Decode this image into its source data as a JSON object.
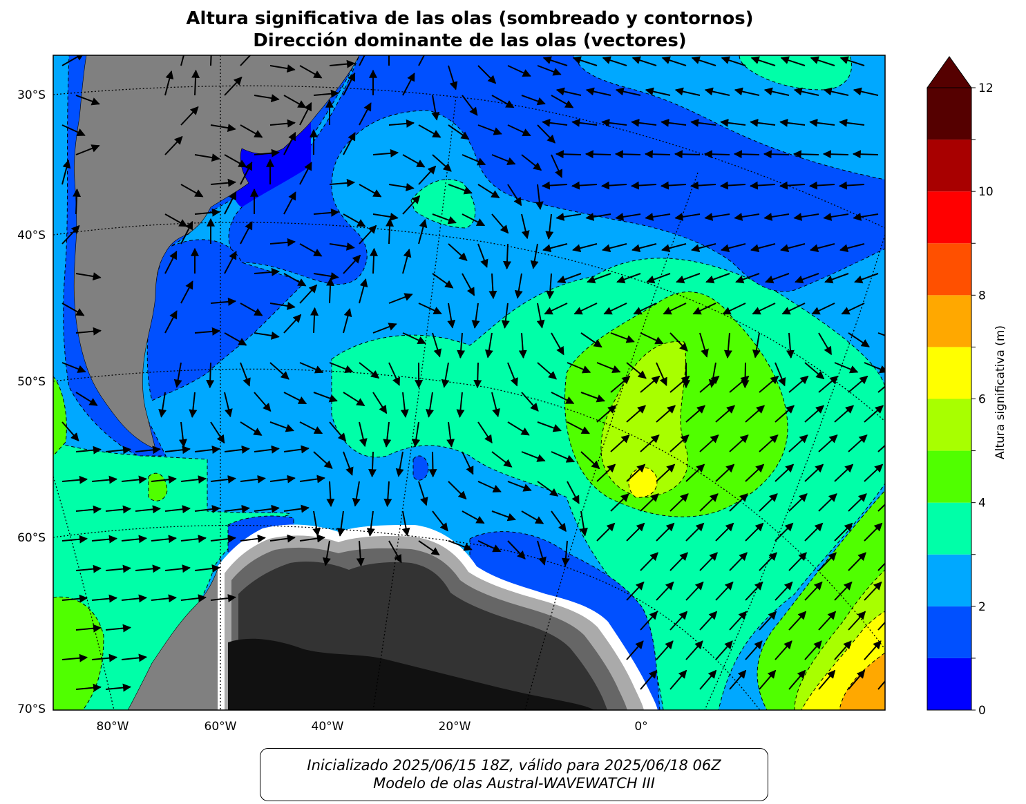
{
  "title": {
    "line1": "Altura significativa de las olas (sombreado y contornos)",
    "line2": "Dirección dominante de las olas (vectores)"
  },
  "footer": {
    "line1": "Inicializado 2025/06/15 18Z, válido para 2025/06/18 06Z",
    "line2": "Modelo de olas Austral-WAVEWATCH III"
  },
  "axes": {
    "lat_labels": [
      "30°S",
      "40°S",
      "50°S",
      "60°S",
      "70°S"
    ],
    "lon_labels": [
      "80°W",
      "60°W",
      "40°W",
      "20°W",
      "0°"
    ]
  },
  "colorbar": {
    "label": "Altura significativa (m)",
    "tick_labels": [
      "0",
      "2",
      "4",
      "6",
      "8",
      "10",
      "12"
    ],
    "levels": [
      0,
      1,
      2,
      3,
      4,
      5,
      6,
      7,
      8,
      9,
      10,
      11,
      12
    ],
    "colors": [
      "#0000ff",
      "#0050ff",
      "#00a8ff",
      "#00ffa8",
      "#50ff00",
      "#a8ff00",
      "#ffff00",
      "#ffa800",
      "#ff5000",
      "#ff0000",
      "#a80000",
      "#550000"
    ],
    "extend": "max"
  },
  "legend_colors": {
    "land": "#808080",
    "ice_dark": "#111111",
    "ice_light": "#ffffff"
  }
}
